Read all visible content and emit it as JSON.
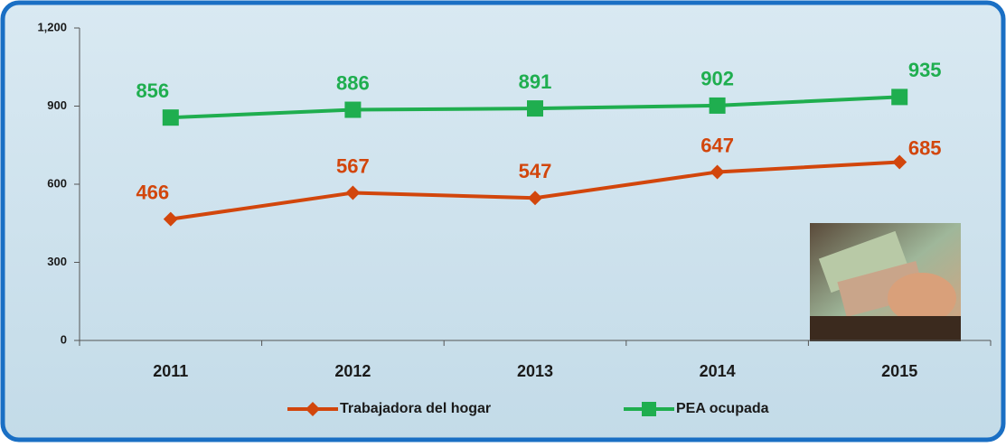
{
  "chart_data": {
    "type": "line",
    "categories": [
      "2011",
      "2012",
      "2013",
      "2014",
      "2015"
    ],
    "series": [
      {
        "name": "Trabajadora del hogar",
        "color": "#d2460c",
        "marker": "diamond",
        "values": [
          466,
          567,
          547,
          647,
          685
        ]
      },
      {
        "name": "PEA ocupada",
        "color": "#1fae4f",
        "marker": "square",
        "values": [
          856,
          886,
          891,
          902,
          935
        ]
      }
    ],
    "ylim": [
      0,
      1200
    ],
    "yticks": [
      0,
      300,
      600,
      900,
      {
        "value": 1200,
        "label": "1,200"
      }
    ],
    "grid": false,
    "legend": "bottom"
  }
}
